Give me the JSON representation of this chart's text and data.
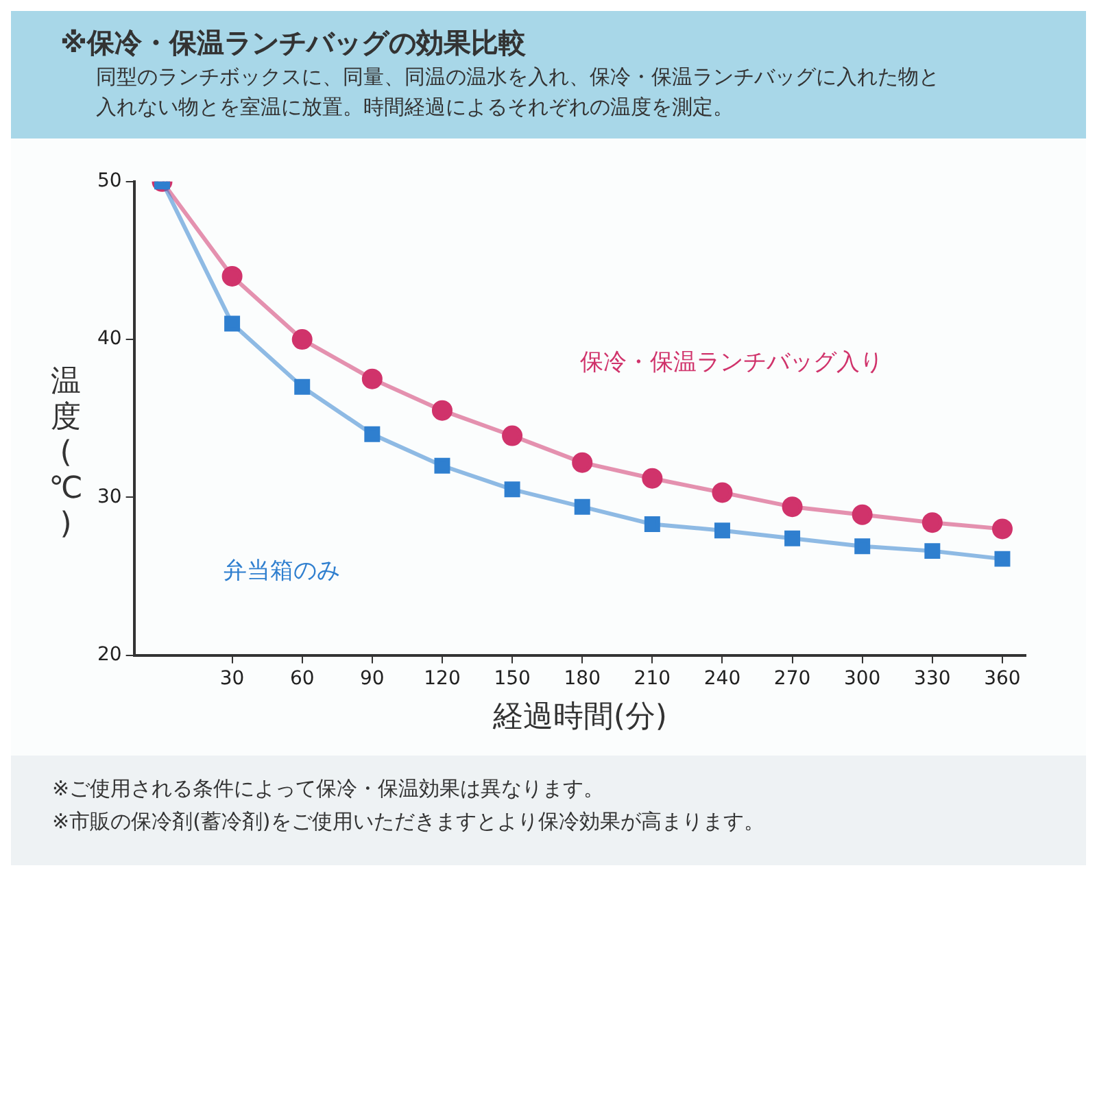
{
  "chart_data": {
    "type": "line",
    "title": "※保冷・保温ランチバッグの効果比較",
    "subtitle": "同型のランチボックスに、同量、同温の温水を入れ、保冷・保温ランチバッグに入れた物と入れない物とを室温に放置。時間経過によるそれぞれの温度を測定。",
    "xlabel": "経過時間(分)",
    "ylabel": "温度(℃)",
    "x": [
      0,
      30,
      60,
      90,
      120,
      150,
      180,
      210,
      240,
      270,
      300,
      330,
      360
    ],
    "series": [
      {
        "name": "保冷・保温ランチバッグ入り",
        "color": "#d0336b",
        "marker": "circle",
        "values": [
          50,
          44,
          40,
          37.5,
          35.5,
          33.9,
          32.2,
          31.2,
          30.3,
          29.4,
          28.9,
          28.4,
          28
        ]
      },
      {
        "name": "弁当箱のみ",
        "color": "#2f7fcf",
        "marker": "square",
        "values": [
          50,
          41,
          37,
          34,
          32,
          30.5,
          29.4,
          28.3,
          27.9,
          27.4,
          26.9,
          26.6,
          26.1
        ]
      }
    ],
    "xlim": [
      -12,
      370
    ],
    "xticks": [
      30,
      60,
      90,
      120,
      150,
      180,
      210,
      240,
      270,
      300,
      330,
      360
    ],
    "ylim": [
      20,
      50
    ],
    "yticks": [
      20,
      30,
      40,
      50
    ],
    "grid": false,
    "legend": false,
    "annotations": [
      "※ご使用される条件によって保冷・保温効果は異なります。",
      "※市販の保冷剤(蓄冷剤)をご使用いただきますとより保冷効果が高まります。"
    ]
  }
}
